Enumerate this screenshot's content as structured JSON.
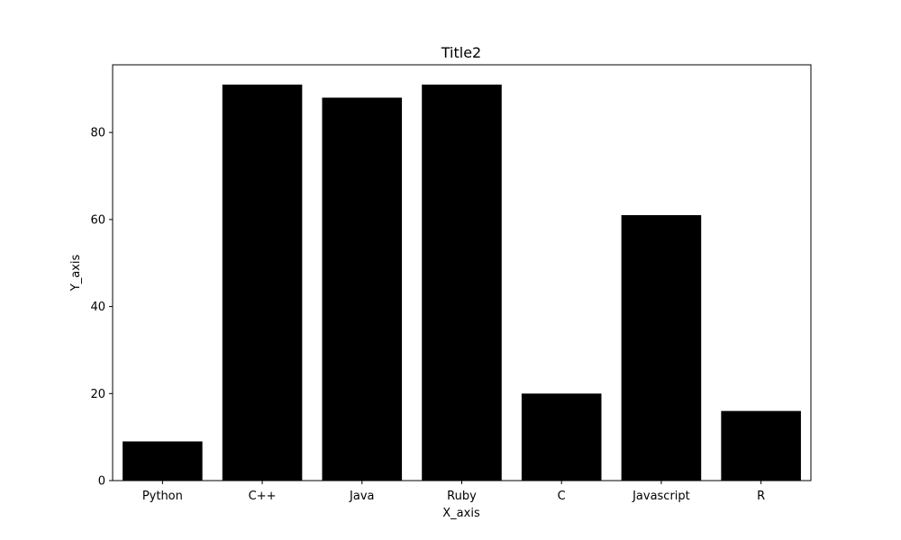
{
  "chart_data": {
    "type": "bar",
    "title": "Title2",
    "xlabel": "X_axis",
    "ylabel": "Y_axis",
    "categories": [
      "Python",
      "C++",
      "Java",
      "Ruby",
      "C",
      "Javascript",
      "R"
    ],
    "values": [
      9,
      91,
      88,
      91,
      20,
      61,
      16
    ],
    "ylim": [
      0,
      95.55
    ],
    "yticks": [
      0,
      20,
      40,
      60,
      80
    ],
    "grid": false,
    "bar_color": "#000000"
  }
}
